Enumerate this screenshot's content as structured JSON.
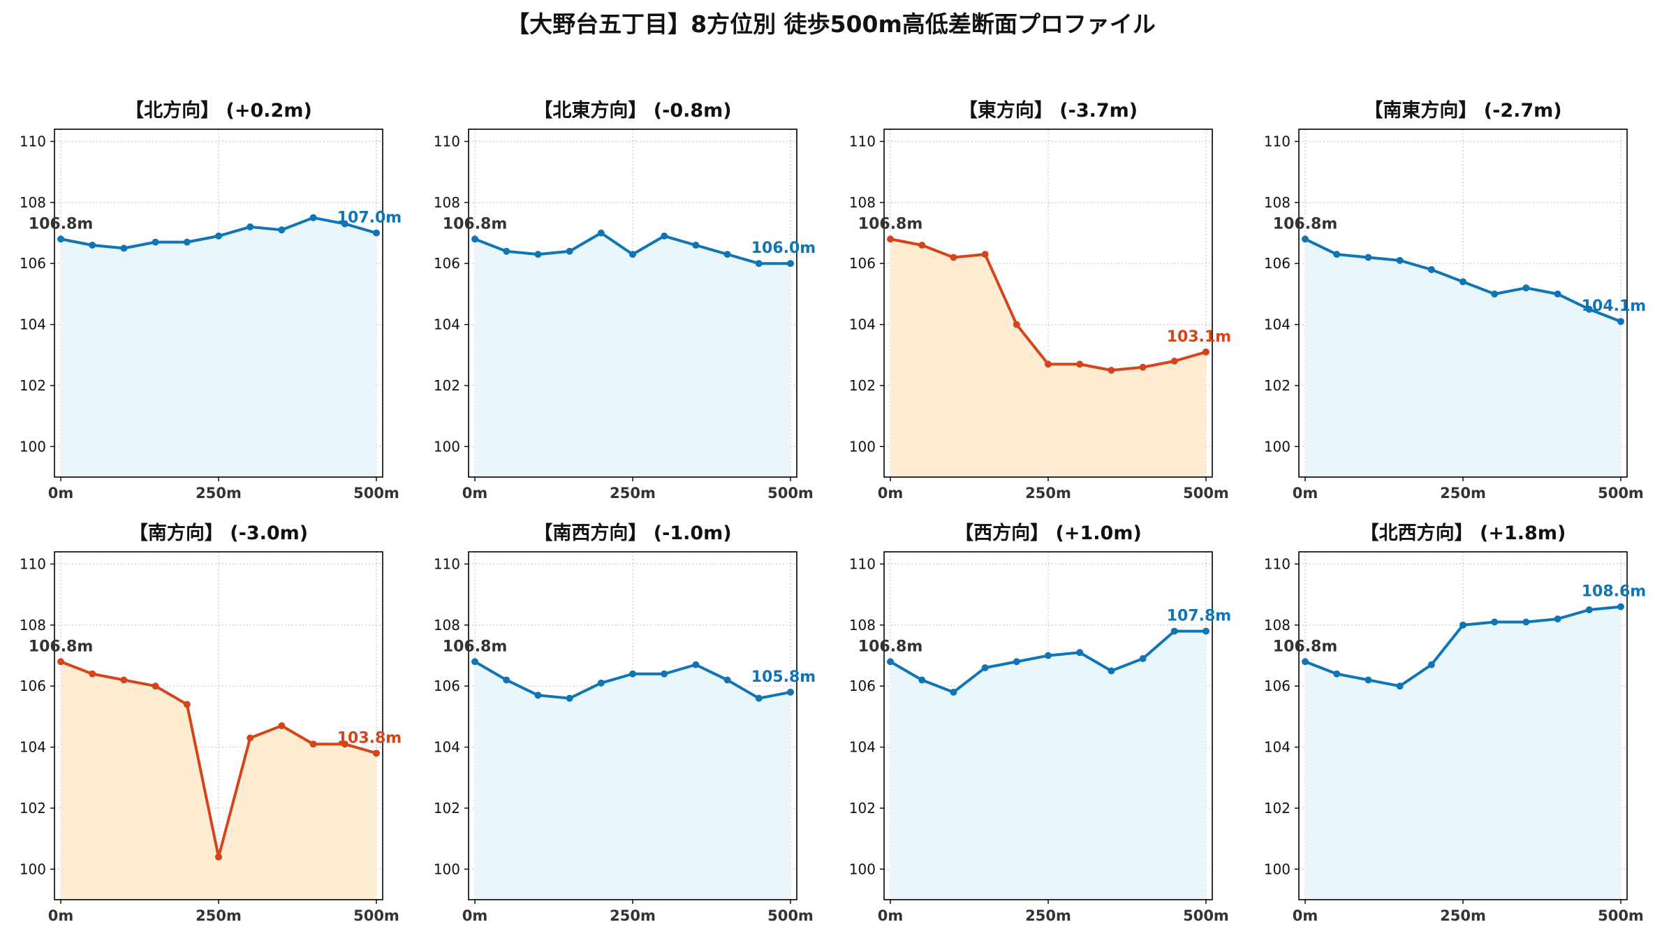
{
  "title": "【大野台五丁目】8方位別 徒歩500m高低差断面プロファイル",
  "colors": {
    "up_line": "#0f75b5",
    "up_fill": "#e9f6fc",
    "down_line": "#d4451a",
    "down_fill": "#feecd3",
    "start_label": "#333333",
    "grid": "#c8c8c8"
  },
  "chart_data": [
    {
      "type": "line",
      "title": "【北方向】 (+0.2m)",
      "trend": "up",
      "x": [
        0,
        50,
        100,
        150,
        200,
        250,
        300,
        350,
        400,
        450,
        500
      ],
      "values": [
        106.8,
        106.6,
        106.5,
        106.7,
        106.7,
        106.9,
        107.2,
        107.1,
        107.5,
        107.3,
        107.0
      ],
      "start_label": "106.8m",
      "end_label": "107.0m",
      "xticks": [
        "0m",
        "250m",
        "500m"
      ],
      "yticks": [
        "100",
        "102",
        "104",
        "106",
        "108",
        "110"
      ],
      "xlim": [
        -10,
        510
      ],
      "ylim": [
        99,
        110.4
      ],
      "grid": true
    },
    {
      "type": "line",
      "title": "【北東方向】 (-0.8m)",
      "trend": "up",
      "x": [
        0,
        50,
        100,
        150,
        200,
        250,
        300,
        350,
        400,
        450,
        500
      ],
      "values": [
        106.8,
        106.4,
        106.3,
        106.4,
        107.0,
        106.3,
        106.9,
        106.6,
        106.3,
        106.0,
        106.0
      ],
      "start_label": "106.8m",
      "end_label": "106.0m",
      "xticks": [
        "0m",
        "250m",
        "500m"
      ],
      "yticks": [
        "100",
        "102",
        "104",
        "106",
        "108",
        "110"
      ],
      "xlim": [
        -10,
        510
      ],
      "ylim": [
        99,
        110.4
      ],
      "grid": true
    },
    {
      "type": "line",
      "title": "【東方向】 (-3.7m)",
      "trend": "down",
      "x": [
        0,
        50,
        100,
        150,
        200,
        250,
        300,
        350,
        400,
        450,
        500
      ],
      "values": [
        106.8,
        106.6,
        106.2,
        106.3,
        104.0,
        102.7,
        102.7,
        102.5,
        102.6,
        102.8,
        103.1
      ],
      "start_label": "106.8m",
      "end_label": "103.1m",
      "xticks": [
        "0m",
        "250m",
        "500m"
      ],
      "yticks": [
        "100",
        "102",
        "104",
        "106",
        "108",
        "110"
      ],
      "xlim": [
        -10,
        510
      ],
      "ylim": [
        99,
        110.4
      ],
      "grid": true
    },
    {
      "type": "line",
      "title": "【南東方向】 (-2.7m)",
      "trend": "up",
      "x": [
        0,
        50,
        100,
        150,
        200,
        250,
        300,
        350,
        400,
        450,
        500
      ],
      "values": [
        106.8,
        106.3,
        106.2,
        106.1,
        105.8,
        105.4,
        105.0,
        105.2,
        105.0,
        104.5,
        104.1
      ],
      "start_label": "106.8m",
      "end_label": "104.1m",
      "xticks": [
        "0m",
        "250m",
        "500m"
      ],
      "yticks": [
        "100",
        "102",
        "104",
        "106",
        "108",
        "110"
      ],
      "xlim": [
        -10,
        510
      ],
      "ylim": [
        99,
        110.4
      ],
      "grid": true
    },
    {
      "type": "line",
      "title": "【南方向】 (-3.0m)",
      "trend": "down",
      "x": [
        0,
        50,
        100,
        150,
        200,
        250,
        300,
        350,
        400,
        450,
        500
      ],
      "values": [
        106.8,
        106.4,
        106.2,
        106.0,
        105.4,
        100.4,
        104.3,
        104.7,
        104.1,
        104.1,
        103.8
      ],
      "start_label": "106.8m",
      "end_label": "103.8m",
      "xticks": [
        "0m",
        "250m",
        "500m"
      ],
      "yticks": [
        "100",
        "102",
        "104",
        "106",
        "108",
        "110"
      ],
      "xlim": [
        -10,
        510
      ],
      "ylim": [
        99,
        110.4
      ],
      "grid": true
    },
    {
      "type": "line",
      "title": "【南西方向】 (-1.0m)",
      "trend": "up",
      "x": [
        0,
        50,
        100,
        150,
        200,
        250,
        300,
        350,
        400,
        450,
        500
      ],
      "values": [
        106.8,
        106.2,
        105.7,
        105.6,
        106.1,
        106.4,
        106.4,
        106.7,
        106.2,
        105.6,
        105.8
      ],
      "start_label": "106.8m",
      "end_label": "105.8m",
      "xticks": [
        "0m",
        "250m",
        "500m"
      ],
      "yticks": [
        "100",
        "102",
        "104",
        "106",
        "108",
        "110"
      ],
      "xlim": [
        -10,
        510
      ],
      "ylim": [
        99,
        110.4
      ],
      "grid": true
    },
    {
      "type": "line",
      "title": "【西方向】 (+1.0m)",
      "trend": "up",
      "x": [
        0,
        50,
        100,
        150,
        200,
        250,
        300,
        350,
        400,
        450,
        500
      ],
      "values": [
        106.8,
        106.2,
        105.8,
        106.6,
        106.8,
        107.0,
        107.1,
        106.5,
        106.9,
        107.8,
        107.8
      ],
      "start_label": "106.8m",
      "end_label": "107.8m",
      "xticks": [
        "0m",
        "250m",
        "500m"
      ],
      "yticks": [
        "100",
        "102",
        "104",
        "106",
        "108",
        "110"
      ],
      "xlim": [
        -10,
        510
      ],
      "ylim": [
        99,
        110.4
      ],
      "grid": true
    },
    {
      "type": "line",
      "title": "【北西方向】 (+1.8m)",
      "trend": "up",
      "x": [
        0,
        50,
        100,
        150,
        200,
        250,
        300,
        350,
        400,
        450,
        500
      ],
      "values": [
        106.8,
        106.4,
        106.2,
        106.0,
        106.7,
        108.0,
        108.1,
        108.1,
        108.2,
        108.5,
        108.6
      ],
      "start_label": "106.8m",
      "end_label": "108.6m",
      "xticks": [
        "0m",
        "250m",
        "500m"
      ],
      "yticks": [
        "100",
        "102",
        "104",
        "106",
        "108",
        "110"
      ],
      "xlim": [
        -10,
        510
      ],
      "ylim": [
        99,
        110.4
      ],
      "grid": true
    }
  ]
}
